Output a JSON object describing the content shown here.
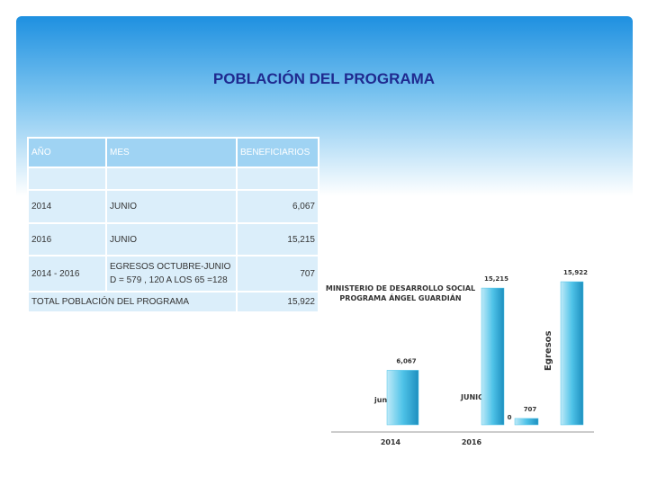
{
  "title": "POBLACIÓN DEL PROGRAMA",
  "table": {
    "header": [
      "AÑO",
      "MES",
      "BENEFICIARIOS"
    ],
    "rows": [
      [
        "2014",
        "JUNIO",
        "6,067"
      ],
      [
        "2016",
        "JUNIO",
        "15,215"
      ],
      [
        "2014 - 2016",
        [
          "EGRESOS OCTUBRE-JUNIO",
          "D = 579 , 120 A LOS 65 =128"
        ],
        "707"
      ]
    ],
    "total": [
      "TOTAL POBLACIÓN DEL PROGRAMA",
      "15,922"
    ]
  },
  "chart": {
    "type": "bar",
    "title": [
      "MINISTERIO DE DESARROLLO SOCIAL",
      "PROGRAMA ÁNGEL GUARDIÁN"
    ],
    "values": [
      6067,
      15215,
      0,
      707,
      15922
    ],
    "value_labels": [
      "6,067",
      "15,215",
      "0",
      "707",
      "15,922"
    ],
    "categories": [
      "2014",
      "2016"
    ],
    "annotations": [
      "junio",
      "JUNIO",
      "Egresos"
    ],
    "color": "#4fc3e8"
  }
}
